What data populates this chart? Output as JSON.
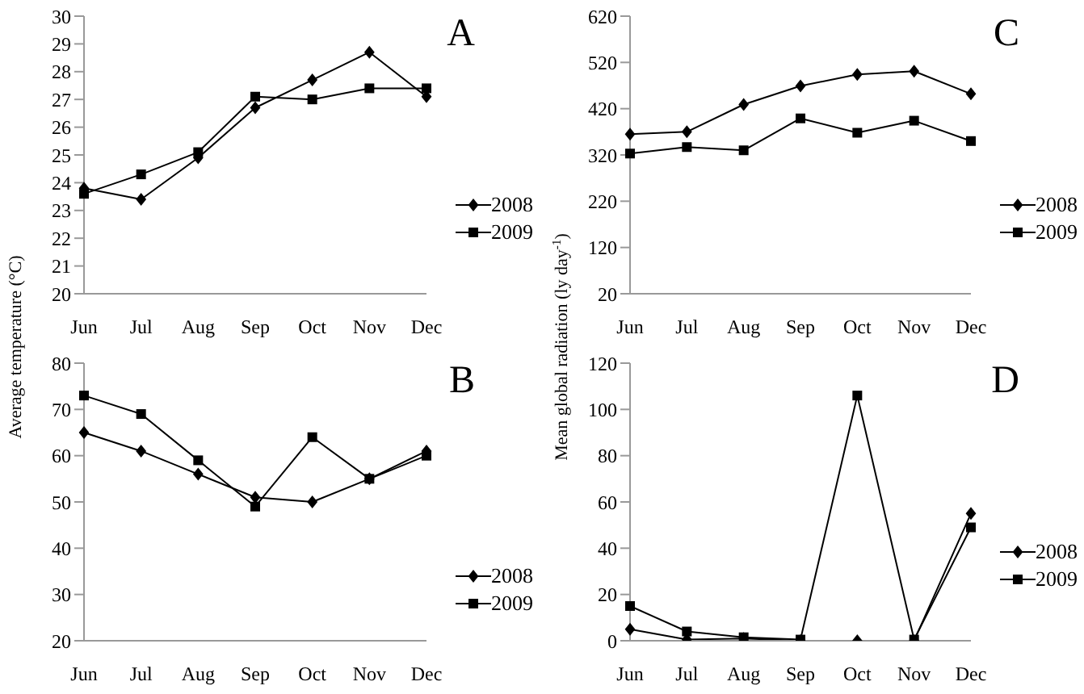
{
  "chart_data": [
    {
      "type": "line",
      "title": "A",
      "ylabel": "Average temperature (°C)",
      "categories": [
        "Jun",
        "Jul",
        "Aug",
        "Sep",
        "Oct",
        "Nov",
        "Dec"
      ],
      "ylim": [
        20,
        30
      ],
      "yticks": [
        20,
        21,
        22,
        23,
        24,
        25,
        26,
        27,
        28,
        29,
        30
      ],
      "grid": false,
      "legend": "right",
      "series": [
        {
          "name": "2008",
          "color": "#000000",
          "marker": "diamond",
          "values": [
            23.8,
            23.4,
            24.9,
            26.7,
            27.7,
            28.7,
            27.1
          ]
        },
        {
          "name": "2009",
          "color": "#000000",
          "marker": "square",
          "values": [
            23.6,
            24.3,
            25.1,
            27.1,
            27.0,
            27.4,
            27.4
          ]
        }
      ]
    },
    {
      "type": "line",
      "title": "B",
      "categories": [
        "Jun",
        "Jul",
        "Aug",
        "Sep",
        "Oct",
        "Nov",
        "Dec"
      ],
      "ylim": [
        20,
        80
      ],
      "yticks": [
        20,
        30,
        40,
        50,
        60,
        70,
        80
      ],
      "grid": false,
      "legend": "bottom right",
      "series": [
        {
          "name": "2008",
          "color": "#000000",
          "marker": "diamond",
          "values": [
            65,
            61,
            56,
            51,
            50,
            55,
            61
          ]
        },
        {
          "name": "2009",
          "color": "#000000",
          "marker": "square",
          "values": [
            73,
            69,
            59,
            49,
            64,
            55,
            60
          ]
        }
      ]
    },
    {
      "type": "line",
      "title": "C",
      "ylabel": "Mean global radiation (ly day$^{-1}$)",
      "categories": [
        "Jun",
        "Jul",
        "Aug",
        "Sep",
        "Oct",
        "Nov",
        "Dec"
      ],
      "ylim": [
        20,
        620
      ],
      "yticks": [
        20,
        120,
        220,
        320,
        420,
        520,
        620
      ],
      "grid": false,
      "legend": "right",
      "series": [
        {
          "name": "2008",
          "color": "#000000",
          "marker": "diamond",
          "values": [
            365,
            370,
            429,
            469,
            494,
            501,
            452
          ]
        },
        {
          "name": "2009",
          "color": "#000000",
          "marker": "square",
          "values": [
            323,
            337,
            330,
            399,
            368,
            394,
            350
          ]
        }
      ]
    },
    {
      "type": "line",
      "title": "D",
      "categories": [
        "Jun",
        "Jul",
        "Aug",
        "Sep",
        "Oct",
        "Nov",
        "Dec"
      ],
      "ylim": [
        0,
        120
      ],
      "yticks": [
        0,
        20,
        40,
        60,
        80,
        100,
        120
      ],
      "grid": false,
      "legend": "right",
      "series": [
        {
          "name": "2008",
          "color": "#000000",
          "marker": "diamond",
          "values": [
            5,
            0.5,
            1,
            0,
            0,
            0,
            55
          ]
        },
        {
          "name": "2009",
          "color": "#000000",
          "marker": "square",
          "values": [
            15,
            4,
            1.5,
            0.5,
            106,
            0.5,
            49
          ]
        }
      ]
    }
  ]
}
